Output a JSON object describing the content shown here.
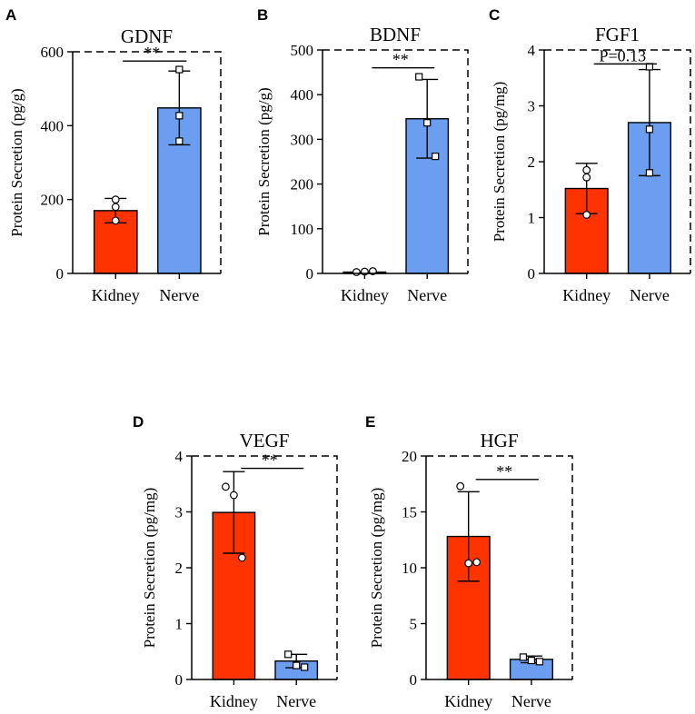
{
  "chart_data": [
    {
      "panel": "A",
      "type": "bar",
      "title": "GDNF",
      "ylabel": "Protein Secretion (pg/g)",
      "categories": [
        "Kidney",
        "Nerve"
      ],
      "values": [
        170,
        448
      ],
      "errors": [
        33,
        100
      ],
      "points": [
        [
          200,
          180,
          143
        ],
        [
          552,
          427,
          358
        ]
      ],
      "markers": [
        "circle",
        "square"
      ],
      "colors": [
        "#ff3300",
        "#6b9ef0"
      ],
      "ylim": [
        0,
        600
      ],
      "yticks": [
        0,
        200,
        400,
        600
      ],
      "significance": {
        "label": "**",
        "y": 575
      }
    },
    {
      "panel": "B",
      "type": "bar",
      "title": "BDNF",
      "ylabel": "Protein Secretion (pg/g)",
      "categories": [
        "Kidney",
        "Nerve"
      ],
      "values": [
        3,
        346
      ],
      "errors": [
        0,
        88
      ],
      "points": [
        [
          3,
          4,
          5
        ],
        [
          440,
          337,
          262
        ]
      ],
      "markers": [
        "circle",
        "square"
      ],
      "colors": [
        "#ff3300",
        "#6b9ef0"
      ],
      "ylim": [
        0,
        500
      ],
      "yticks": [
        0,
        100,
        200,
        300,
        400,
        500
      ],
      "significance": {
        "label": "**",
        "y": 460
      }
    },
    {
      "panel": "C",
      "type": "bar",
      "title": "FGF1",
      "ylabel": "Protein Secretion (pg/mg)",
      "categories": [
        "Kidney",
        "Nerve"
      ],
      "values": [
        1.52,
        2.7
      ],
      "errors": [
        0.45,
        0.95
      ],
      "points": [
        [
          1.85,
          1.72,
          1.05
        ],
        [
          3.7,
          2.58,
          1.8
        ]
      ],
      "markers": [
        "circle",
        "square"
      ],
      "colors": [
        "#ff3300",
        "#6b9ef0"
      ],
      "ylim": [
        0,
        4
      ],
      "yticks": [
        0,
        1,
        2,
        3,
        4
      ],
      "significance": {
        "label": "P=0.13",
        "y": 3.75
      }
    },
    {
      "panel": "D",
      "type": "bar",
      "title": "VEGF",
      "ylabel": "Protein Secretion (pg/mg)",
      "categories": [
        "Kidney",
        "Nerve"
      ],
      "values": [
        2.99,
        0.33
      ],
      "errors": [
        0.73,
        0.12
      ],
      "points": [
        [
          3.45,
          3.3,
          2.18
        ],
        [
          0.45,
          0.25,
          0.22
        ]
      ],
      "markers": [
        "circle",
        "square"
      ],
      "colors": [
        "#ff3300",
        "#6b9ef0"
      ],
      "ylim": [
        0,
        4
      ],
      "yticks": [
        0,
        1,
        2,
        3,
        4
      ],
      "significance": {
        "label": "**",
        "y": 3.78
      }
    },
    {
      "panel": "E",
      "type": "bar",
      "title": "HGF",
      "ylabel": "Protein Secretion (pg/mg)",
      "categories": [
        "Kidney",
        "Nerve"
      ],
      "values": [
        12.8,
        1.8
      ],
      "errors": [
        4.0,
        0.3
      ],
      "points": [
        [
          17.3,
          10.4,
          10.5
        ],
        [
          2.0,
          1.7,
          1.6
        ]
      ],
      "markers": [
        "circle",
        "square"
      ],
      "colors": [
        "#ff3300",
        "#6b9ef0"
      ],
      "ylim": [
        0,
        20
      ],
      "yticks": [
        0,
        5,
        10,
        15,
        20
      ],
      "significance": {
        "label": "**",
        "y": 17.9
      }
    }
  ]
}
